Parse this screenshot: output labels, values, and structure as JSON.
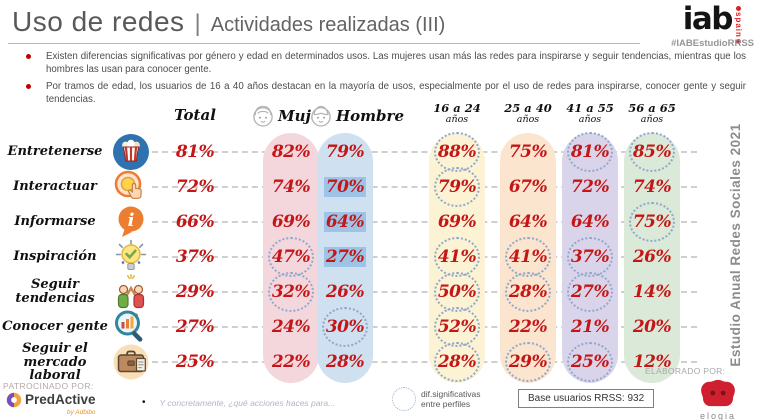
{
  "header": {
    "title_main": "Uso de redes",
    "title_separator": "|",
    "title_sub": "Actividades realizadas (III)",
    "logo_iab": "iab",
    "logo_spain": "spain",
    "logo_hashtag": "#IABEstudioRRSS"
  },
  "bullets": [
    "Existen diferencias significativas por género y edad en determinados usos. Las mujeres usan más las redes para inspirarse y seguir tendencias, mientras que los hombres las usan para conocer gente.",
    "Por tramos de edad, los usuarios de 16 a 40 años destacan en la mayoría de usos, especialmente por el uso de redes para inspirarse, conocer gente y seguir tendencias."
  ],
  "side_label": "Estudio Anual Redes Sociales 2021",
  "table": {
    "headers": {
      "total": "Total",
      "mujer": "Mujer",
      "hombre": "Hombre",
      "age1_line1": "16 a 24",
      "age1_line2": "años",
      "age2_line1": "25 a 40",
      "age2_line2": "años",
      "age3_line1": "41 a 55",
      "age3_line2": "años",
      "age4_line1": "56 a 65",
      "age4_line2": "años"
    },
    "rows": [
      {
        "label": "Entretenerse",
        "icon": "popcorn-icon",
        "values": [
          "81%",
          "82%",
          "79%",
          "88%",
          "75%",
          "81%",
          "85%"
        ],
        "sig": [
          3,
          5,
          6
        ],
        "hl": []
      },
      {
        "label": "Interactuar",
        "icon": "tap-hand-icon",
        "values": [
          "72%",
          "74%",
          "70%",
          "79%",
          "67%",
          "72%",
          "74%"
        ],
        "sig": [
          3
        ],
        "hl": [
          2
        ]
      },
      {
        "label": "Informarse",
        "icon": "info-bubble-icon",
        "values": [
          "66%",
          "69%",
          "64%",
          "69%",
          "64%",
          "64%",
          "75%"
        ],
        "sig": [
          6
        ],
        "hl": [
          2
        ]
      },
      {
        "label": "Inspiración",
        "icon": "lightbulb-icon",
        "values": [
          "37%",
          "47%",
          "27%",
          "41%",
          "41%",
          "37%",
          "26%"
        ],
        "sig": [
          1,
          3,
          4,
          5
        ],
        "hl": [
          2
        ]
      },
      {
        "label": "Seguir tendencias",
        "icon": "high-five-icon",
        "values": [
          "29%",
          "32%",
          "26%",
          "50%",
          "28%",
          "27%",
          "14%"
        ],
        "sig": [
          1,
          3,
          4,
          5
        ],
        "hl": []
      },
      {
        "label": "Conocer gente",
        "icon": "magnifier-chart-icon",
        "values": [
          "27%",
          "24%",
          "30%",
          "52%",
          "22%",
          "21%",
          "20%"
        ],
        "sig": [
          2,
          3
        ],
        "hl": []
      },
      {
        "label": "Seguir el mercado laboral",
        "icon": "briefcase-icon",
        "values": [
          "25%",
          "22%",
          "28%",
          "28%",
          "29%",
          "25%",
          "12%"
        ],
        "sig": [
          3,
          4,
          5
        ],
        "hl": []
      }
    ]
  },
  "footer": {
    "patrocinado": "PATROCINADO POR:",
    "sponsor_name": "PredActive",
    "sponsor_by": "by Adbibo",
    "footnote_bullet": "•",
    "footnote": "Y concretamente, ¿qué acciones haces para...",
    "legend_text": "dif.significativas entre perfiles",
    "base_label": "Base usuarios RRSS: 932",
    "elaborado": "ELABORADO POR:",
    "elogia": "elogia"
  },
  "colors": {
    "value_red": "#c41617",
    "band_mujer": "#f4d7dd",
    "band_hombre": "#cfe0f1",
    "band_16_24": "#fcf3d5",
    "band_25_40": "#fbe5cf",
    "band_41_55": "#dad4eb",
    "band_56_65": "#dbe9d8",
    "highlight_blue": "#9dc3e6"
  },
  "chart_data": {
    "type": "table",
    "title": "Uso de redes | Actividades realizadas (III)",
    "columns": [
      "Total",
      "Mujer",
      "Hombre",
      "16 a 24 años",
      "25 a 40 años",
      "41 a 55 años",
      "56 a 65 años"
    ],
    "rows": [
      {
        "activity": "Entretenerse",
        "values_pct": [
          81,
          82,
          79,
          88,
          75,
          81,
          85
        ],
        "significant_cols": [
          "16 a 24 años",
          "41 a 55 años",
          "56 a 65 años"
        ]
      },
      {
        "activity": "Interactuar",
        "values_pct": [
          72,
          74,
          70,
          79,
          67,
          72,
          74
        ],
        "significant_cols": [
          "16 a 24 años"
        ]
      },
      {
        "activity": "Informarse",
        "values_pct": [
          66,
          69,
          64,
          69,
          64,
          64,
          75
        ],
        "significant_cols": [
          "56 a 65 años"
        ]
      },
      {
        "activity": "Inspiración",
        "values_pct": [
          37,
          47,
          27,
          41,
          41,
          37,
          26
        ],
        "significant_cols": [
          "Mujer",
          "16 a 24 años",
          "25 a 40 años",
          "41 a 55 años"
        ]
      },
      {
        "activity": "Seguir tendencias",
        "values_pct": [
          29,
          32,
          26,
          50,
          28,
          27,
          14
        ],
        "significant_cols": [
          "Mujer",
          "16 a 24 años",
          "25 a 40 años",
          "41 a 55 años"
        ]
      },
      {
        "activity": "Conocer gente",
        "values_pct": [
          27,
          24,
          30,
          52,
          22,
          21,
          20
        ],
        "significant_cols": [
          "Hombre",
          "16 a 24 años"
        ]
      },
      {
        "activity": "Seguir el mercado laboral",
        "values_pct": [
          25,
          22,
          28,
          28,
          29,
          25,
          12
        ],
        "significant_cols": [
          "16 a 24 años",
          "25 a 40 años",
          "41 a 55 años"
        ]
      }
    ],
    "legend": "círculo punteado = dif. significativas entre perfiles",
    "note": "Base usuarios RRSS: 932"
  }
}
